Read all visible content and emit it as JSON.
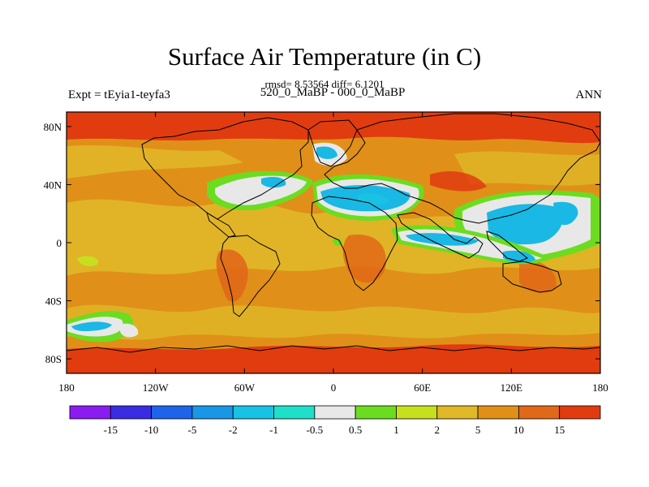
{
  "figure": {
    "title": "Surface Air Temperature (in C)",
    "stats": "rmsd= 8.53564 diff= 6.1201",
    "left_label": "Expt = tEyia1-teyfa3",
    "center_label": "520_0_MaBP - 000_0_MaBP",
    "right_label": "ANN"
  },
  "map": {
    "projection": "cylindrical-equidistant",
    "lon_range": [
      -180,
      180
    ],
    "lat_range": [
      -90,
      90
    ],
    "lon_ticks": [
      {
        "value": -180,
        "label": "180"
      },
      {
        "value": -120,
        "label": "120W"
      },
      {
        "value": -60,
        "label": "60W"
      },
      {
        "value": 0,
        "label": "0"
      },
      {
        "value": 60,
        "label": "60E"
      },
      {
        "value": 120,
        "label": "120E"
      },
      {
        "value": 180,
        "label": "180"
      }
    ],
    "lat_ticks": [
      {
        "value": 80,
        "label": "80N"
      },
      {
        "value": 40,
        "label": "40N"
      },
      {
        "value": 0,
        "label": "0"
      },
      {
        "value": -40,
        "label": "40S"
      },
      {
        "value": -80,
        "label": "80S"
      }
    ]
  },
  "colorbar": {
    "colors": [
      "#8a1cf0",
      "#3a2ce0",
      "#1e64e8",
      "#1a96e6",
      "#18c2e4",
      "#1ee0c8",
      "#e8e8e8",
      "#6cdc20",
      "#c6e020",
      "#e0b828",
      "#e09018",
      "#e06818",
      "#e03c10"
    ],
    "labels": [
      "-15",
      "-10",
      "-5",
      "-2",
      "-1",
      "-0.5",
      "0.5",
      "1",
      "2",
      "5",
      "10",
      "15"
    ]
  },
  "colors": {
    "ocean_base": "#e09018",
    "polar": "#e03c10",
    "coastline": "#000000"
  }
}
